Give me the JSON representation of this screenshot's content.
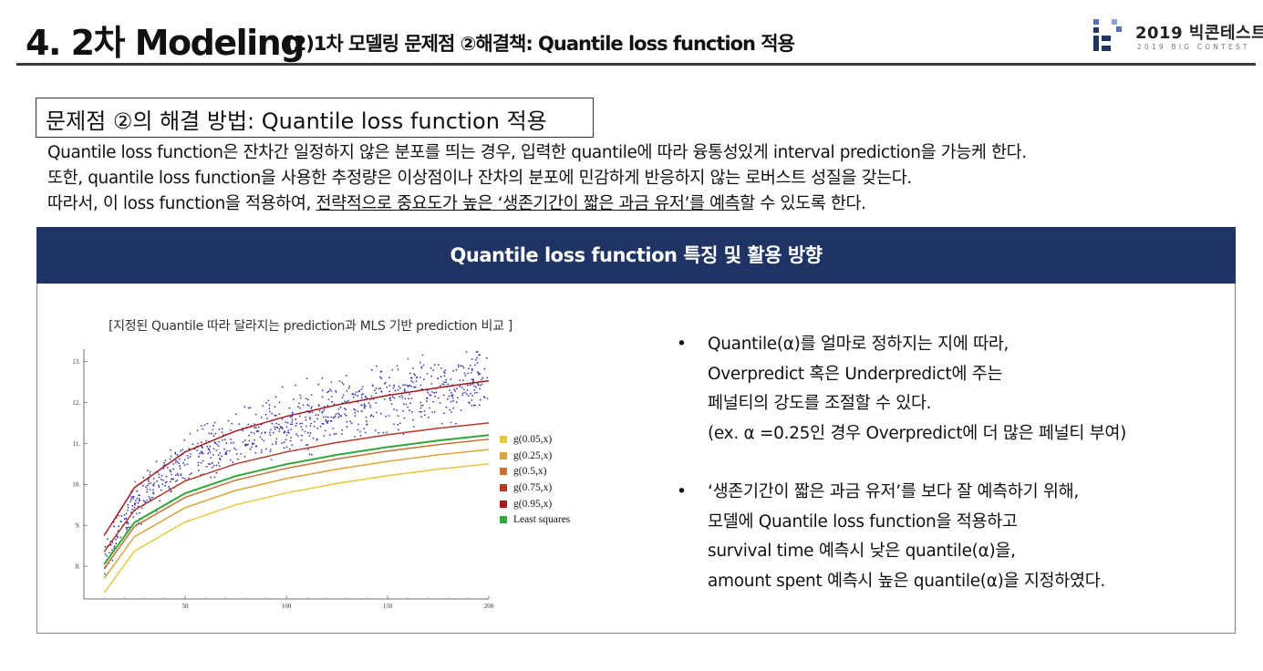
{
  "header": {
    "title_main": "4. 2차 Modeling",
    "title_sub": "(2)1차 모델링 문제점 ②해결책: Quantile loss function 적용",
    "logo_text": "2019 빅콘테스트",
    "logo_subtext": "2019 BIG CONTEST"
  },
  "section": {
    "title": "문제점 ②의 해결 방법: Quantile loss function 적용"
  },
  "intro": {
    "line1": "Quantile loss function은 잔차간 일정하지 않은 분포를 띄는 경우, 입력한 quantile에 따라 융통성있게 interval prediction을 가능케 한다.",
    "line2": "또한, quantile loss function을 사용한 추정량은 이상점이나 잔차의 분포에 민감하게 반응하지 않는 로버스트 성질을 갖는다.",
    "line3_prefix": "따라서, 이 loss function을 적용하여, ",
    "line3_underlined": "전략적으로 중요도가 높은 ‘생존기간이 짧은 과금 유저’를 예측",
    "line3_suffix": "할 수 있도록 한다."
  },
  "panel": {
    "header": "Quantile loss function 특징 및 활용 방향",
    "chart_caption": "[지정된 Quantile 따라 달라지는 prediction과 MLS 기반 prediction 비교 ]"
  },
  "chart_data": {
    "type": "scatter",
    "title": "",
    "xlabel": "",
    "ylabel": "",
    "xlim": [
      0,
      200
    ],
    "ylim": [
      7.2,
      13.3
    ],
    "x_ticks": [
      50,
      100,
      150,
      200
    ],
    "y_ticks": [
      8,
      9,
      10,
      11,
      12,
      13
    ],
    "x_tick_labels": [
      "50",
      "100",
      "150",
      "200"
    ],
    "y_tick_labels": [
      "8.",
      "9.",
      "10.",
      "11.",
      "12.",
      "13."
    ],
    "points_color": "#3a3aa8",
    "legend_position": "right",
    "series": [
      {
        "name": "g(0.05,x)",
        "color": "#e8c53a",
        "x": [
          10,
          25,
          50,
          75,
          100,
          125,
          150,
          175,
          200
        ],
        "values": [
          7.35,
          8.37,
          9.08,
          9.5,
          9.79,
          10.02,
          10.21,
          10.37,
          10.5
        ]
      },
      {
        "name": "g(0.25,x)",
        "color": "#d9a43a",
        "x": [
          10,
          25,
          50,
          75,
          100,
          125,
          150,
          175,
          200
        ],
        "values": [
          7.7,
          8.72,
          9.43,
          9.85,
          10.14,
          10.37,
          10.56,
          10.72,
          10.85
        ]
      },
      {
        "name": "g(0.5,x)",
        "color": "#c7702e",
        "x": [
          10,
          25,
          50,
          75,
          100,
          125,
          150,
          175,
          200
        ],
        "values": [
          7.95,
          8.97,
          9.68,
          10.1,
          10.39,
          10.62,
          10.81,
          10.97,
          11.1
        ]
      },
      {
        "name": "g(0.75,x)",
        "color": "#b23a2a",
        "x": [
          10,
          25,
          50,
          75,
          100,
          125,
          150,
          175,
          200
        ],
        "values": [
          8.35,
          9.37,
          10.08,
          10.5,
          10.79,
          11.02,
          11.21,
          11.37,
          11.5
        ]
      },
      {
        "name": "g(0.95,x)",
        "color": "#a8191e",
        "x": [
          10,
          25,
          50,
          75,
          100,
          125,
          150,
          175,
          200
        ],
        "values": [
          8.75,
          9.92,
          10.79,
          11.3,
          11.66,
          11.94,
          12.17,
          12.36,
          12.53
        ]
      },
      {
        "name": "Least squares",
        "color": "#2fa83a",
        "x": [
          10,
          25,
          50,
          75,
          100,
          125,
          150,
          175,
          200
        ],
        "values": [
          8.05,
          9.07,
          9.78,
          10.2,
          10.49,
          10.72,
          10.91,
          11.07,
          11.2
        ]
      }
    ]
  },
  "bullets": [
    {
      "marker": "•",
      "lines": [
        "Quantile(α)를 얼마로 정하지는 지에 따라,",
        "Overpredict 혹은 Underpredict에 주는",
        "페널티의 강도를 조절할 수 있다.",
        "(ex. α =0.25인 경우 Overpredict에 더 많은 페널티 부여)"
      ]
    },
    {
      "marker": "•",
      "lines": [
        "‘생존기간이 짧은 과금 유저’를 보다 잘 예측하기 위해,",
        "모델에 Quantile loss function을 적용하고",
        "survival time 예측시 낮은 quantile(α)을,",
        "amount spent 예측시 높은 quantile(α)을 지정하였다."
      ]
    }
  ]
}
